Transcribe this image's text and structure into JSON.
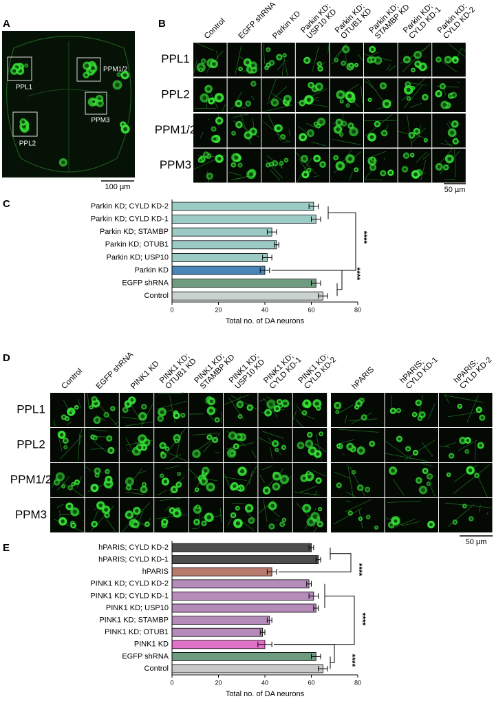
{
  "figure": {
    "A": {
      "letter": "A",
      "region_labels": [
        "PPL1",
        "PPM1/2",
        "PPM3",
        "PPL2"
      ],
      "scale_bar": "100 µm"
    },
    "B": {
      "letter": "B",
      "columns": [
        [
          "Control"
        ],
        [
          "EGFP shRNA"
        ],
        [
          "Parkin KD"
        ],
        [
          "Parkin KD;",
          "USP10 KD"
        ],
        [
          "Parkin KD;",
          "OTUB1 KD"
        ],
        [
          "Parkin KD;",
          "STAMBP KD"
        ],
        [
          "Parkin KD;",
          "CYLD KD-1"
        ],
        [
          "Parkin KD;",
          "CYLD KD-2"
        ]
      ],
      "rows": [
        "PPL1",
        "PPL2",
        "PPM1/2",
        "PPM3"
      ],
      "scale_bar": "50 µm"
    },
    "D": {
      "letter": "D",
      "columns": [
        [
          "Control"
        ],
        [
          "EGFP shRNA"
        ],
        [
          "PINK1 KD"
        ],
        [
          "PINK1 KD;",
          "OTUB1 KD"
        ],
        [
          "PINK1 KD;",
          "STAMBP KD"
        ],
        [
          "PINK1 KD;",
          "USP10 KD"
        ],
        [
          "PINK1 KD;",
          "CYLD KD-1"
        ],
        [
          "PINK1 KD;",
          "CYLD KD-2"
        ],
        [
          "hPARIS"
        ],
        [
          "hPARIS;",
          "CYLD KD-1"
        ],
        [
          "hPARIS;",
          "CYLD KD-2"
        ]
      ],
      "rows": [
        "PPL1",
        "PPL2",
        "PPM1/2",
        "PPM3"
      ],
      "scale_bar": "50 µm"
    }
  },
  "chart_data": [
    {
      "type": "bar",
      "panel": "C",
      "categories": [
        "Parkin KD; CYLD KD-2",
        "Parkin KD; CYLD KD-1",
        "Parkin KD; STAMBP",
        "Parkin KD; OTUB1",
        "Parkin KD; USP10",
        "Parkin KD",
        "EGFP shRNA",
        "Control"
      ],
      "values": [
        61,
        62,
        43,
        45,
        41,
        40,
        62,
        65
      ],
      "errors": [
        2,
        2,
        2,
        1,
        2,
        2,
        2,
        2
      ],
      "colors": [
        "#9ccbc6",
        "#9ccbc6",
        "#9ccbc6",
        "#9ccbc6",
        "#9ccbc6",
        "#4a86b8",
        "#6f9c80",
        "#c9d3cd"
      ],
      "xlim": [
        0,
        80
      ],
      "xticks": [
        0,
        20,
        40,
        60,
        80
      ],
      "xlabel": "Total no. of DA neurons",
      "annotations": [
        "****",
        "****"
      ]
    },
    {
      "type": "bar",
      "panel": "E",
      "categories": [
        "hPARIS; CYLD KD-2",
        "hPARIS; CYLD KD-1",
        "hPARIS",
        "PINK1 KD; CYLD KD-2",
        "PINK1 KD; CYLD KD-1",
        "PINK1 KD; USP10",
        "PINK1 KD; STAMBP",
        "PINK1 KD; OTUB1",
        "PINK1 KD",
        "EGFP shRNA",
        "Control"
      ],
      "values": [
        60,
        63,
        43,
        59,
        61,
        62,
        42,
        39,
        40,
        62,
        65
      ],
      "errors": [
        1,
        1,
        2,
        1,
        2,
        1,
        1,
        1,
        3,
        2,
        2
      ],
      "colors": [
        "#4d4d4d",
        "#4d4d4d",
        "#b97a6e",
        "#b58cb9",
        "#b58cb9",
        "#b58cb9",
        "#b58cb9",
        "#b58cb9",
        "#e070c8",
        "#6f9c80",
        "#c8c8c8"
      ],
      "xlim": [
        0,
        80
      ],
      "xticks": [
        0,
        20,
        40,
        60,
        80
      ],
      "xlabel": "Total no. of DA neurons",
      "annotations": [
        "****",
        "****",
        "****"
      ]
    }
  ]
}
